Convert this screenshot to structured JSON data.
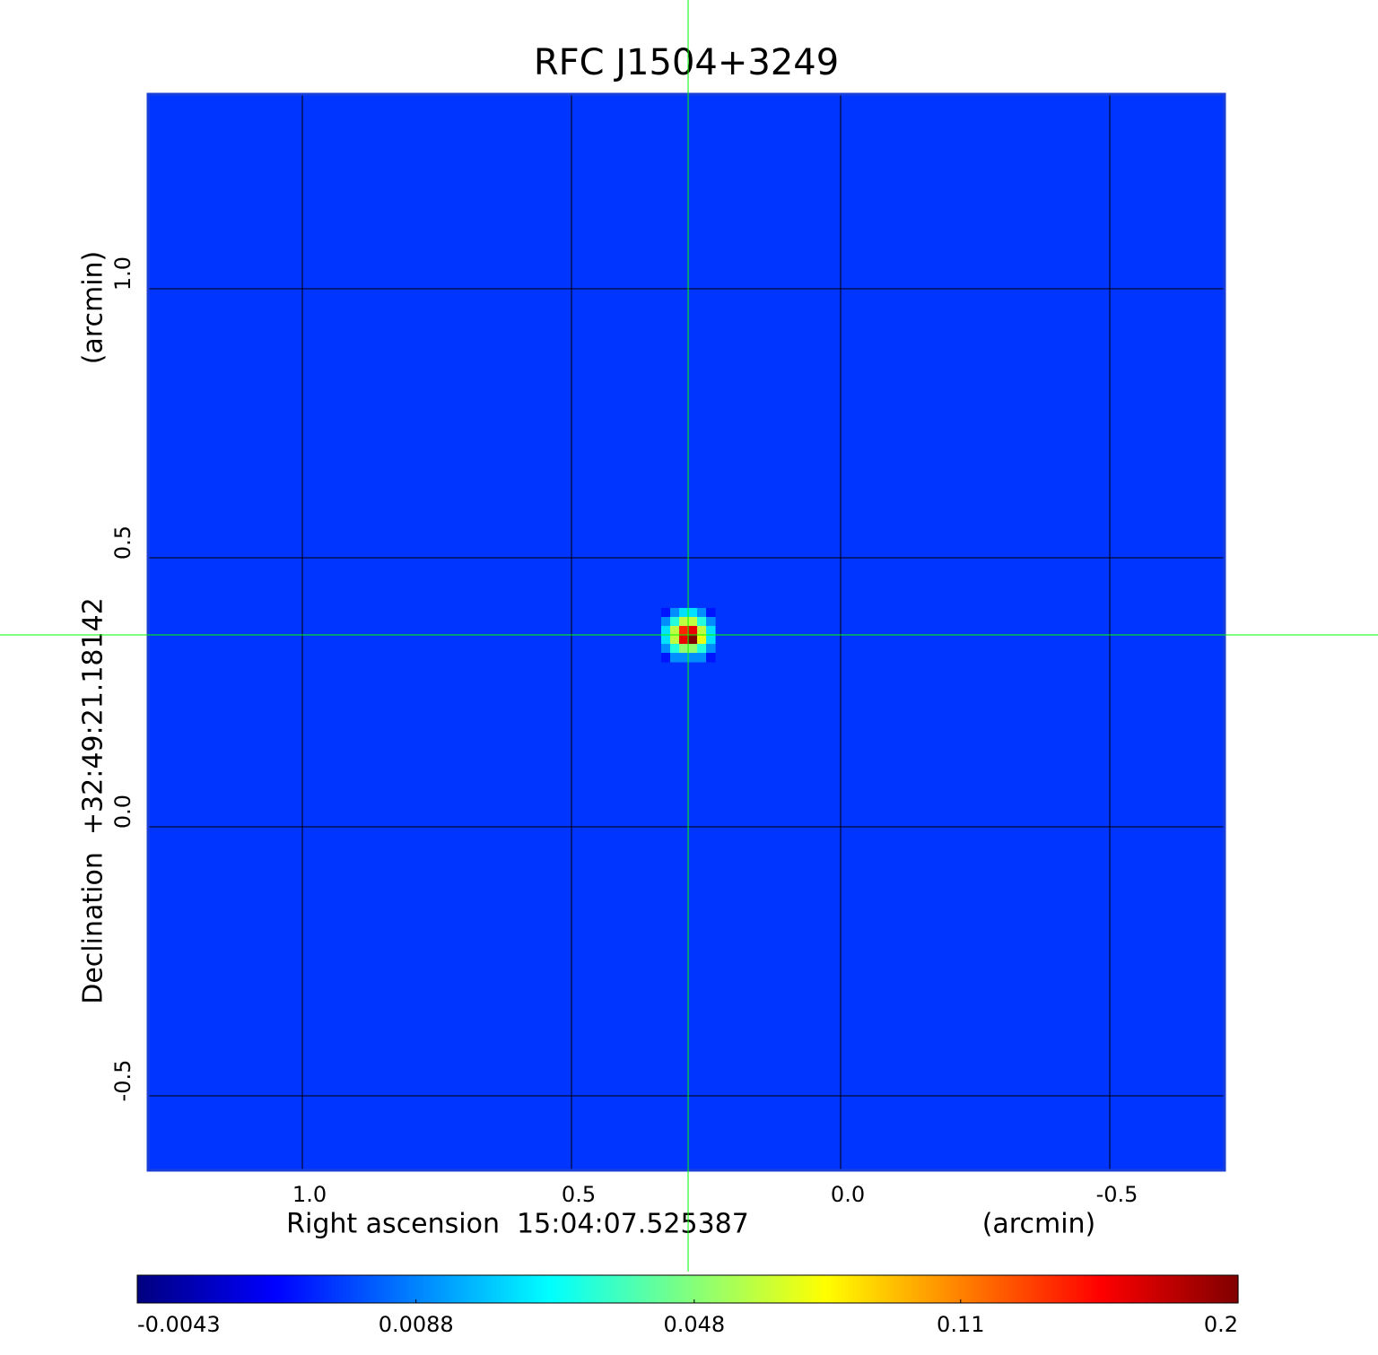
{
  "chart_data": {
    "type": "image",
    "title": "RFC J1504+3249",
    "title_color": "#1010d0",
    "x_label": "Right ascension  15:04:07.525387",
    "x_unit": "(arcmin)",
    "y_label": "Declination  +32:49:21.18142",
    "y_unit": "(arcmin)",
    "xlim": [
      1.2867,
      -0.7133
    ],
    "ylim": [
      -0.6383,
      1.3617
    ],
    "xticks": [
      {
        "value": 1.0,
        "label": "1.0"
      },
      {
        "value": 0.5,
        "label": "0.5"
      },
      {
        "value": 0.0,
        "label": "0.0"
      },
      {
        "value": -0.5,
        "label": "-0.5"
      }
    ],
    "yticks": [
      {
        "value": -0.5,
        "label": "-0.5"
      },
      {
        "value": 0.0,
        "label": "0.0"
      },
      {
        "value": 0.5,
        "label": "0.5"
      },
      {
        "value": 1.0,
        "label": "1.0"
      }
    ],
    "grid": true,
    "colormap": "jet",
    "colorbar": {
      "scale": "sqrt",
      "lim": [
        -0.0043,
        0.2
      ],
      "ticks": [
        -0.0043,
        0.0088,
        0.048,
        0.11,
        0.2
      ]
    },
    "image": {
      "background": 0.002,
      "center": [
        0.2833,
        0.3567
      ],
      "pixel": 0.0167,
      "values": [
        [
          0.0,
          0.01,
          0.02,
          0.02,
          0.01,
          0.0
        ],
        [
          0.01,
          0.03,
          0.06,
          0.06,
          0.03,
          0.01
        ],
        [
          0.02,
          0.06,
          0.14,
          0.16,
          0.06,
          0.02
        ],
        [
          0.02,
          0.06,
          0.16,
          0.2,
          0.07,
          0.02
        ],
        [
          0.01,
          0.03,
          0.05,
          0.05,
          0.03,
          0.01
        ],
        [
          0.0,
          0.01,
          0.01,
          0.01,
          0.01,
          0.0
        ]
      ]
    },
    "marker": {
      "x": 0.2833,
      "y": 0.3567,
      "color": "#00ff00"
    }
  }
}
